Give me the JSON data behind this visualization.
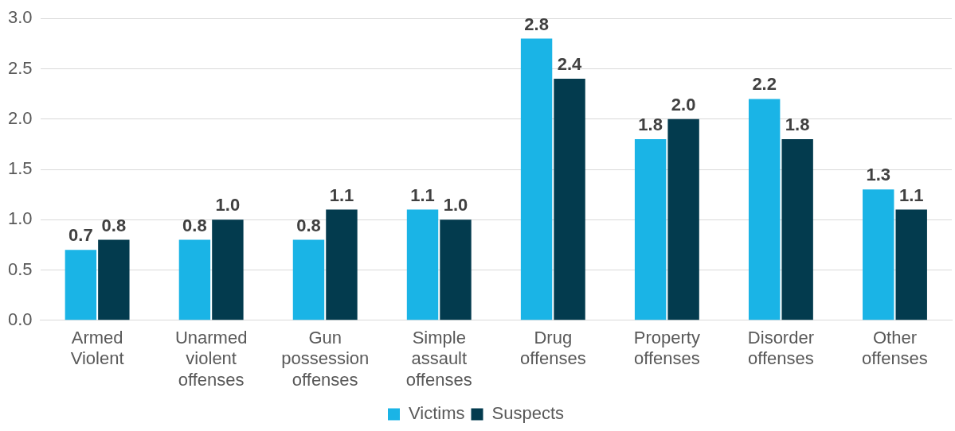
{
  "chart_data": {
    "type": "bar",
    "categories": [
      "Armed Violent",
      "Unarmed violent offenses",
      "Gun possession offenses",
      "Simple assault offenses",
      "Drug offenses",
      "Property offenses",
      "Disorder offenses",
      "Other offenses"
    ],
    "series": [
      {
        "name": "Victims",
        "color": "#1ab4e6",
        "values": [
          0.7,
          0.8,
          0.8,
          1.1,
          2.8,
          1.8,
          2.2,
          1.3
        ],
        "value_labels": [
          "0.7",
          "0.8",
          "0.8",
          "1.1",
          "2.8",
          "1.8",
          "2.2",
          "1.3"
        ]
      },
      {
        "name": "Suspects",
        "color": "#033b4e",
        "values": [
          0.8,
          1.0,
          1.1,
          1.0,
          2.4,
          2.0,
          1.8,
          1.1
        ],
        "value_labels": [
          "0.8",
          "1.0",
          "1.1",
          "1.0",
          "2.4",
          "2.0",
          "1.8",
          "1.1"
        ]
      }
    ],
    "ylim": [
      0,
      3
    ],
    "yticks": [
      {
        "value": 0,
        "label": "0.0"
      },
      {
        "value": 0.5,
        "label": "0.5"
      },
      {
        "value": 1,
        "label": "1.0"
      },
      {
        "value": 1.5,
        "label": "1.5"
      },
      {
        "value": 2,
        "label": "2.0"
      },
      {
        "value": 2.5,
        "label": "2.5"
      },
      {
        "value": 3,
        "label": "3.0"
      }
    ],
    "grid": "y",
    "legend": "bottom"
  }
}
